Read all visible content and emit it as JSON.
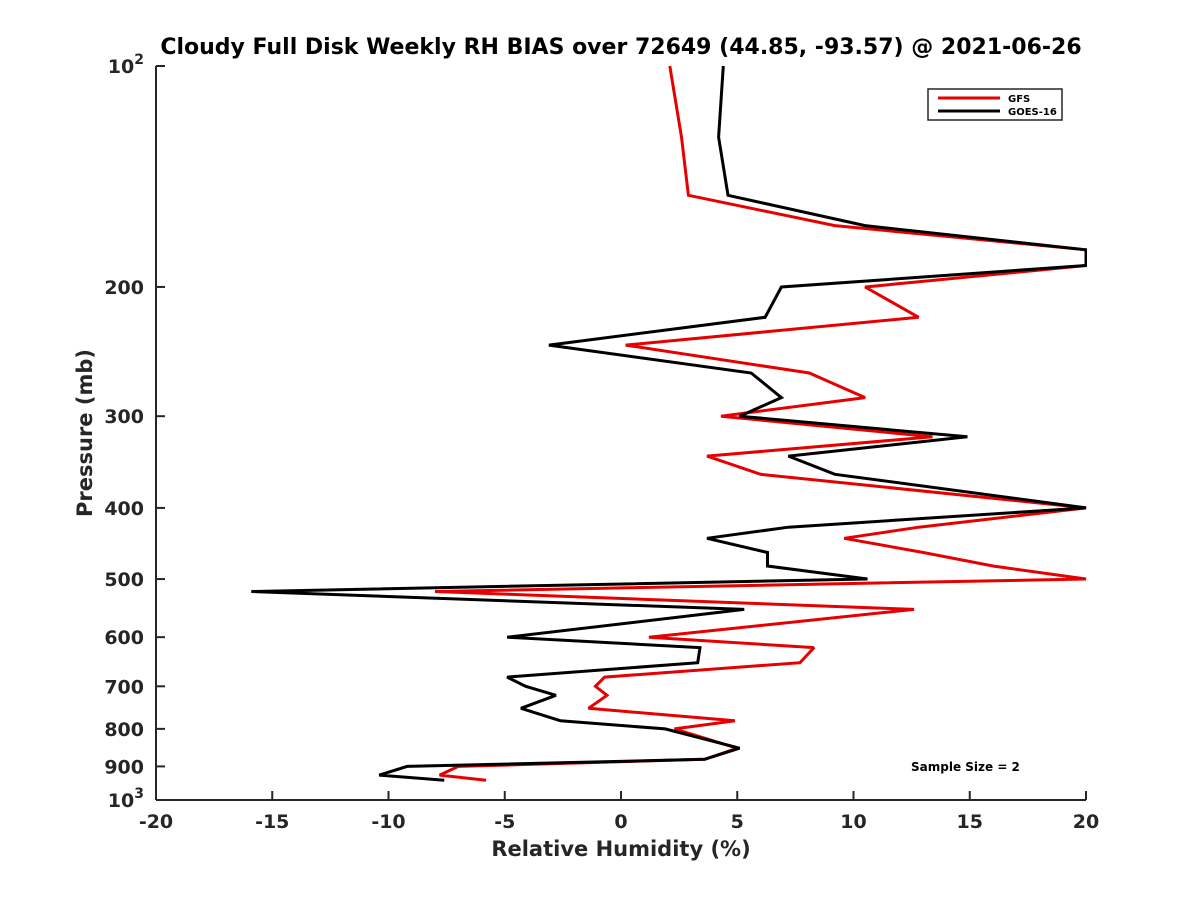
{
  "chart_data": {
    "type": "line",
    "title": "Cloudy Full Disk Weekly RH BIAS over 72649 (44.85, -93.57) @ 2021-06-26",
    "xlabel": "Relative Humidity (%)",
    "ylabel": "Pressure (mb)",
    "xlim": [
      -20,
      20
    ],
    "ylim": [
      100,
      1000
    ],
    "y_scale": "log",
    "y_reversed": true,
    "grid": false,
    "legend_position": "top-right",
    "x_ticks": [
      -20,
      -15,
      -10,
      -5,
      0,
      5,
      10,
      15,
      20
    ],
    "x_tick_labels": [
      "-20",
      "-15",
      "-10",
      "-5",
      "0",
      "5",
      "10",
      "15",
      "20"
    ],
    "y_ticks": [
      100,
      200,
      300,
      400,
      500,
      600,
      700,
      800,
      900,
      1000
    ],
    "y_tick_labels": [
      "10^2",
      "200",
      "300",
      "400",
      "500",
      "600",
      "700",
      "800",
      "900",
      "10^3"
    ],
    "annotation": "Sample Size = 2",
    "series": [
      {
        "name": "GFS",
        "color": "#e60000",
        "pressure": [
          100,
          125,
          150,
          165,
          178,
          187,
          200,
          220,
          240,
          262,
          283,
          300,
          320,
          340,
          360,
          400,
          425,
          440,
          460,
          480,
          500,
          520,
          550,
          600,
          620,
          650,
          680,
          700,
          720,
          750,
          780,
          800,
          850,
          880,
          900,
          925,
          940
        ],
        "values": [
          2.1,
          2.6,
          2.9,
          9.2,
          20.0,
          20.0,
          10.5,
          12.8,
          0.2,
          8.1,
          10.5,
          4.3,
          13.4,
          3.7,
          6.0,
          20.0,
          12.8,
          9.6,
          13.0,
          16.0,
          20.0,
          -8.0,
          12.6,
          1.2,
          8.3,
          7.7,
          -0.7,
          -1.1,
          -0.6,
          -1.4,
          4.9,
          2.3,
          5.0,
          3.6,
          -7.0,
          -7.8,
          -5.8
        ]
      },
      {
        "name": "GOES-16",
        "color": "#000000",
        "pressure": [
          100,
          125,
          150,
          165,
          178,
          187,
          200,
          220,
          240,
          262,
          283,
          300,
          320,
          340,
          360,
          400,
          425,
          440,
          460,
          480,
          500,
          520,
          550,
          600,
          620,
          650,
          680,
          700,
          720,
          750,
          780,
          800,
          850,
          880,
          900,
          925,
          940
        ],
        "values": [
          4.4,
          4.2,
          4.6,
          10.5,
          20.0,
          20.0,
          6.9,
          6.2,
          -3.1,
          5.6,
          6.9,
          5.1,
          14.9,
          7.2,
          9.2,
          20.0,
          7.2,
          3.7,
          6.3,
          6.3,
          10.6,
          -15.9,
          5.3,
          -4.9,
          3.4,
          3.3,
          -4.9,
          -4.1,
          -2.8,
          -4.3,
          -2.6,
          1.9,
          5.1,
          3.6,
          -9.2,
          -10.4,
          -7.6
        ]
      }
    ]
  }
}
